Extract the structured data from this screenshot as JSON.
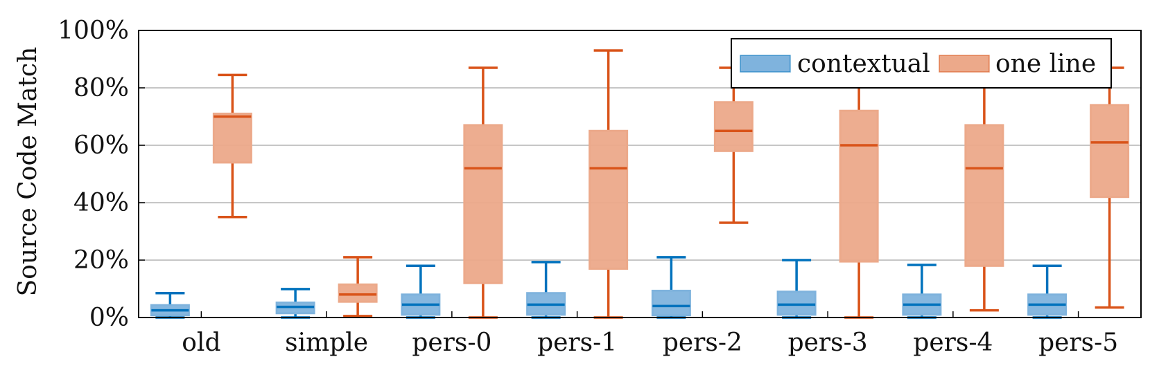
{
  "chart_data": {
    "type": "boxplot",
    "title": "",
    "xlabel": "",
    "ylabel": "Source Code Match",
    "ylim": [
      0,
      100
    ],
    "yticks": [
      "0%",
      "20%",
      "40%",
      "60%",
      "80%",
      "100%"
    ],
    "ytick_values": [
      0,
      20,
      40,
      60,
      80,
      100
    ],
    "grid": "horizontal",
    "legend_position": "top-right",
    "categories": [
      "old",
      "simple",
      "pers-0",
      "pers-1",
      "pers-2",
      "pers-3",
      "pers-4",
      "pers-5"
    ],
    "series": [
      {
        "name": "contextual",
        "color": "#0072bd",
        "fill": "#7fb3dd",
        "boxes": [
          {
            "whisker_low": 0,
            "q1": 0.8,
            "median": 2.5,
            "q3": 4.3,
            "whisker_high": 8.5
          },
          {
            "whisker_low": 0,
            "q1": 1.5,
            "median": 3.7,
            "q3": 5.2,
            "whisker_high": 9.9
          },
          {
            "whisker_low": 0,
            "q1": 1.0,
            "median": 4.5,
            "q3": 8.0,
            "whisker_high": 18.0
          },
          {
            "whisker_low": 0,
            "q1": 1.0,
            "median": 4.5,
            "q3": 8.5,
            "whisker_high": 19.3
          },
          {
            "whisker_low": 0,
            "q1": 0.8,
            "median": 4.0,
            "q3": 9.3,
            "whisker_high": 21.0
          },
          {
            "whisker_low": 0,
            "q1": 1.0,
            "median": 4.5,
            "q3": 9.0,
            "whisker_high": 20.0
          },
          {
            "whisker_low": 0,
            "q1": 1.0,
            "median": 4.5,
            "q3": 8.0,
            "whisker_high": 18.3
          },
          {
            "whisker_low": 0,
            "q1": 1.0,
            "median": 4.5,
            "q3": 8.0,
            "whisker_high": 18.0
          }
        ]
      },
      {
        "name": "one line",
        "color": "#d95319",
        "fill": "#eca98a",
        "boxes": [
          {
            "whisker_low": 35,
            "q1": 54,
            "median": 70,
            "q3": 71,
            "whisker_high": 84.5
          },
          {
            "whisker_low": 0.5,
            "q1": 5.5,
            "median": 8,
            "q3": 11.5,
            "whisker_high": 21
          },
          {
            "whisker_low": 0,
            "q1": 12,
            "median": 52,
            "q3": 67,
            "whisker_high": 87
          },
          {
            "whisker_low": 0,
            "q1": 17,
            "median": 52,
            "q3": 65,
            "whisker_high": 93
          },
          {
            "whisker_low": 33,
            "q1": 58,
            "median": 65,
            "q3": 75,
            "whisker_high": 87
          },
          {
            "whisker_low": 0,
            "q1": 19.5,
            "median": 60,
            "q3": 72,
            "whisker_high": 87
          },
          {
            "whisker_low": 2.5,
            "q1": 18,
            "median": 52,
            "q3": 67,
            "whisker_high": 87
          },
          {
            "whisker_low": 3.5,
            "q1": 42,
            "median": 61,
            "q3": 74,
            "whisker_high": 87
          }
        ]
      }
    ]
  }
}
